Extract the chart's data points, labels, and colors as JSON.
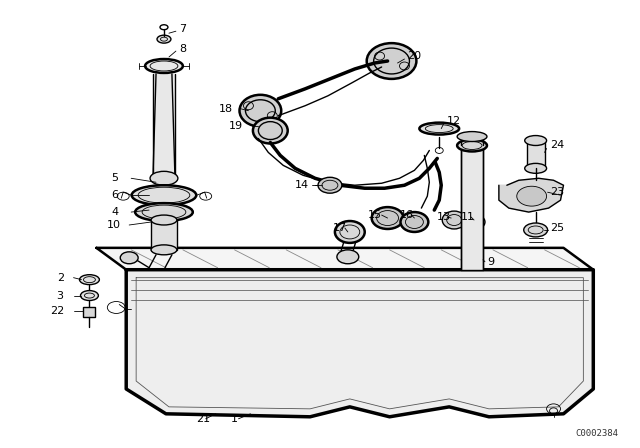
{
  "bg_color": "#ffffff",
  "line_color": "#000000",
  "watermark": "C0002384",
  "fig_width": 6.4,
  "fig_height": 4.48,
  "dpi": 100
}
